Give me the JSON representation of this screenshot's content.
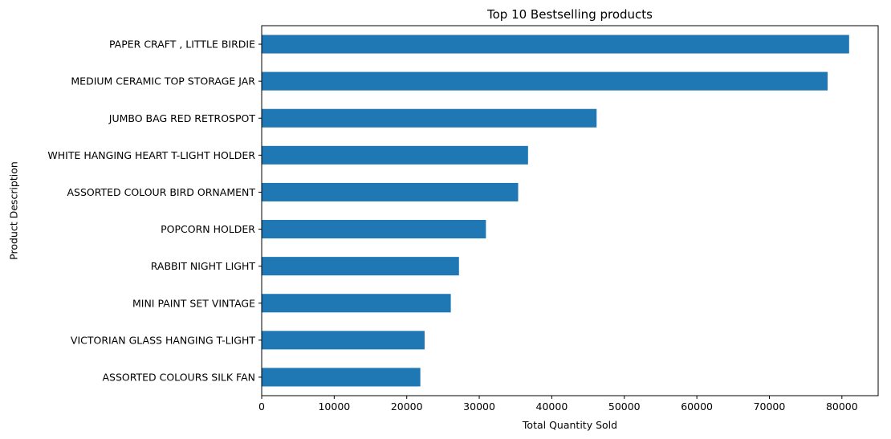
{
  "chart_data": {
    "type": "bar",
    "orientation": "horizontal",
    "title": "Top 10 Bestselling products",
    "xlabel": "Total Quantity Sold",
    "ylabel": "Product Description",
    "color": "#1f77b4",
    "grid": false,
    "legend": "none",
    "xlim": [
      0,
      85000
    ],
    "xticks": [
      0,
      10000,
      20000,
      30000,
      40000,
      50000,
      60000,
      70000,
      80000
    ],
    "categories": [
      "PAPER CRAFT , LITTLE BIRDIE",
      "MEDIUM CERAMIC TOP STORAGE JAR",
      "JUMBO BAG RED RETROSPOT",
      "WHITE HANGING HEART T-LIGHT HOLDER",
      "ASSORTED COLOUR BIRD ORNAMENT",
      "POPCORN HOLDER",
      "RABBIT NIGHT LIGHT",
      "MINI PAINT SET VINTAGE ",
      "VICTORIAN GLASS HANGING T-LIGHT",
      "ASSORTED COLOURS SILK FAN"
    ],
    "values": [
      80995,
      78033,
      46181,
      36725,
      35362,
      30919,
      27202,
      26076,
      22465,
      21876
    ]
  }
}
